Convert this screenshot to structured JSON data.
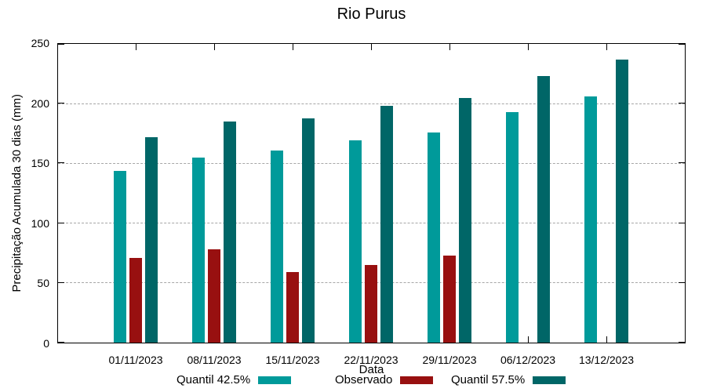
{
  "title": "Rio Purus",
  "chart_data": {
    "type": "bar",
    "title": "Rio Purus",
    "xlabel": "Data",
    "ylabel": "Precipitação Acumulada 30 dias (mm)",
    "ylim": [
      0,
      250
    ],
    "yticks": [
      0,
      50,
      100,
      150,
      200,
      250
    ],
    "grid": true,
    "legend_position": "bottom",
    "categories": [
      "01/11/2023",
      "08/11/2023",
      "15/11/2023",
      "22/11/2023",
      "29/11/2023",
      "06/12/2023",
      "13/12/2023"
    ],
    "series": [
      {
        "name": "Quantil 42.5%",
        "color": "#009a9a",
        "values": [
          144,
          155,
          161,
          169,
          176,
          193,
          206
        ]
      },
      {
        "name": "Observado",
        "color": "#981010",
        "values": [
          71,
          78,
          59,
          65,
          73,
          null,
          null
        ]
      },
      {
        "name": "Quantil 57.5%",
        "color": "#006667",
        "values": [
          172,
          185,
          188,
          198,
          205,
          223,
          237
        ]
      }
    ],
    "colors": {
      "axis": "#000000",
      "grid": "#a6a6a6",
      "background": "#ffffff"
    }
  }
}
